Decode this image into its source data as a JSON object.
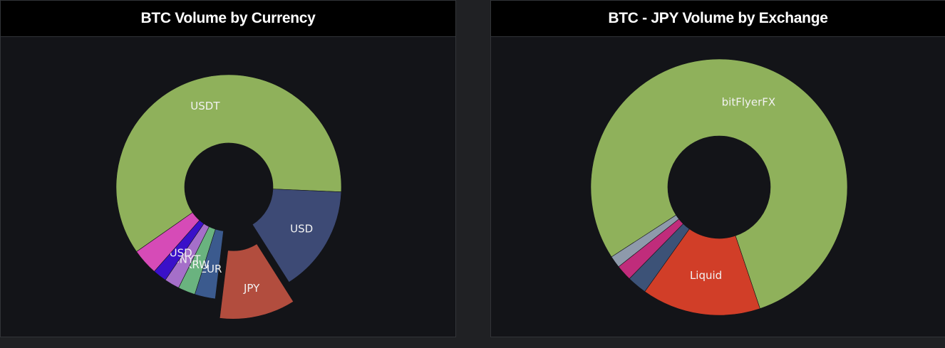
{
  "chart_data": [
    {
      "type": "pie",
      "title": "BTC Volume by Currency",
      "donut": true,
      "colors": {
        "panel_bg": "#131418",
        "header_bg": "#000000"
      },
      "slices": [
        {
          "label": "USDT",
          "value": 61.0,
          "color": "#8fb15b"
        },
        {
          "label": "USD",
          "value": 15.5,
          "color": "#3d4a75"
        },
        {
          "label": "JPY",
          "value": 11.0,
          "color": "#b24d3e",
          "exploded": true
        },
        {
          "label": "EUR",
          "value": 3.0,
          "color": "#3b5a8e"
        },
        {
          "label": "KRW",
          "value": 2.5,
          "color": "#6ab37f"
        },
        {
          "label": "CNYT",
          "value": 2.2,
          "color": "#a56fc9"
        },
        {
          "label": "BUSD",
          "value": 2.0,
          "color": "#3a10c9"
        },
        {
          "label": "",
          "value": 3.8,
          "color": "#d64bb7"
        }
      ]
    },
    {
      "type": "pie",
      "title": "BTC - JPY Volume by Exchange",
      "donut": true,
      "slices": [
        {
          "label": "bitFlyerFX",
          "value": 79.0,
          "color": "#8fb15b"
        },
        {
          "label": "Liquid",
          "value": 15.0,
          "color": "#d13e28"
        },
        {
          "label": "",
          "value": 2.5,
          "color": "#3c5277"
        },
        {
          "label": "",
          "value": 2.0,
          "color": "#c02c7b"
        },
        {
          "label": "",
          "value": 1.5,
          "color": "#8e9aab"
        }
      ]
    }
  ]
}
